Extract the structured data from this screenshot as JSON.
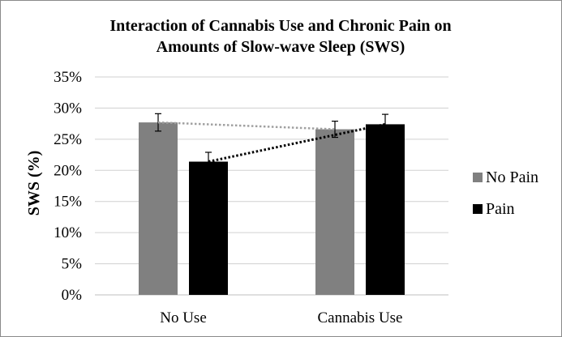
{
  "chart_data": {
    "type": "bar",
    "title_lines": [
      "Interaction of Cannabis Use and Chronic Pain on",
      "Amounts of Slow-wave Sleep (SWS)"
    ],
    "xlabel": "",
    "ylabel": "SWS (%)",
    "categories": [
      "No Use",
      "Cannabis Use"
    ],
    "series": [
      {
        "name": "No Pain",
        "values": [
          27.7,
          26.6
        ],
        "errors": [
          1.4,
          1.3
        ],
        "color": "#808080"
      },
      {
        "name": "Pain",
        "values": [
          21.4,
          27.4
        ],
        "errors": [
          1.5,
          1.6
        ],
        "color": "#000000"
      }
    ],
    "trendlines": [
      {
        "series": "No Pain",
        "style": "dotted",
        "color": "#a0a0a0"
      },
      {
        "series": "Pain",
        "style": "dotted",
        "color": "#000000"
      }
    ],
    "ylim": [
      0,
      35
    ],
    "yticks": [
      "0%",
      "5%",
      "10%",
      "15%",
      "20%",
      "25%",
      "30%",
      "35%"
    ],
    "grid": true,
    "legend_position": "right"
  }
}
